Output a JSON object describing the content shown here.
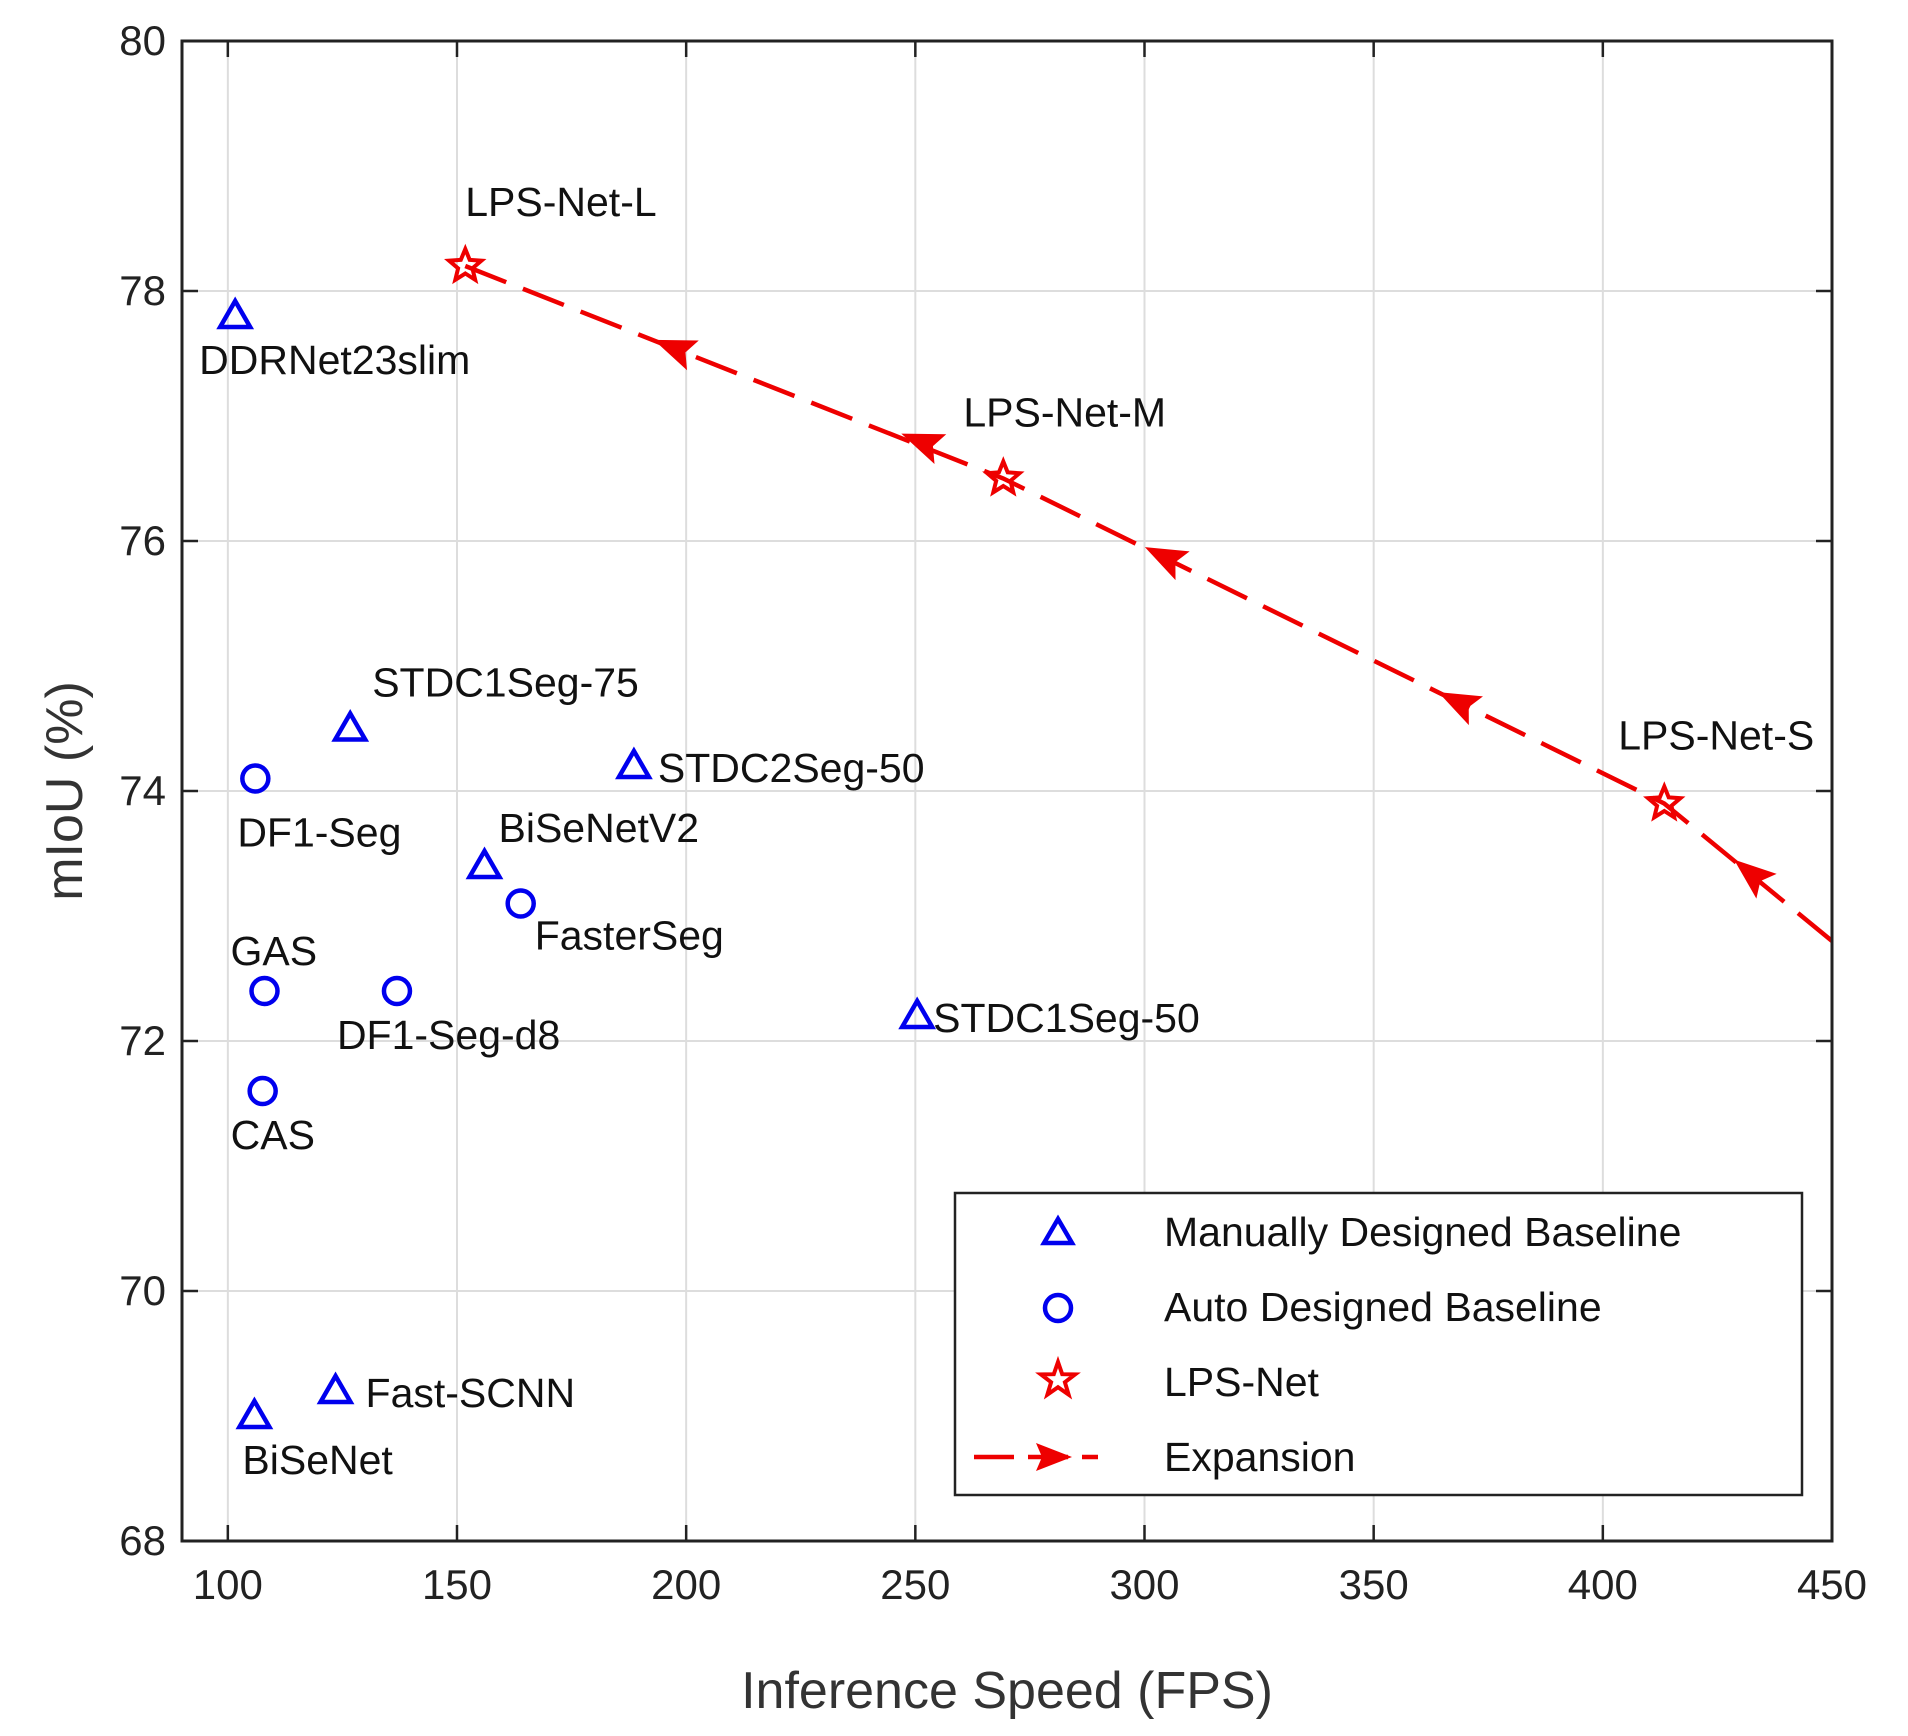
{
  "chart_data": {
    "type": "scatter",
    "title": "",
    "xlabel": "Inference Speed (FPS)",
    "ylabel": "mIoU (%)",
    "xlim": [
      90,
      450
    ],
    "ylim": [
      68,
      80
    ],
    "xticks": [
      100,
      150,
      200,
      250,
      300,
      350,
      400,
      450
    ],
    "yticks": [
      68,
      70,
      72,
      74,
      76,
      78,
      80
    ],
    "grid": true,
    "legend_position": "bottom-right",
    "colors": {
      "baseline": "#0000ee",
      "lpsnet": "#ee0000",
      "grid": "#dddddd",
      "axis": "#222222"
    },
    "series": [
      {
        "name": "Manually Designed Baseline",
        "marker": "triangle",
        "points": [
          {
            "label": "DDRNet23slim",
            "x": 101.6,
            "y": 77.8,
            "label_pos": "below"
          },
          {
            "label": "STDC1Seg-75",
            "x": 126.7,
            "y": 74.5,
            "label_pos": "above-right"
          },
          {
            "label": "STDC2Seg-50",
            "x": 188.6,
            "y": 74.2,
            "label_pos": "right"
          },
          {
            "label": "BiSeNetV2",
            "x": 156,
            "y": 73.4,
            "label_pos": "above-right"
          },
          {
            "label": "STDC1Seg-50",
            "x": 250.4,
            "y": 72.2,
            "label_pos": "right"
          },
          {
            "label": "Fast-SCNN",
            "x": 123.5,
            "y": 69.2,
            "label_pos": "right"
          },
          {
            "label": "BiSeNet",
            "x": 105.8,
            "y": 69,
            "label_pos": "below"
          }
        ]
      },
      {
        "name": "Auto Designed Baseline",
        "marker": "circle",
        "points": [
          {
            "label": "DF1-Seg",
            "x": 106,
            "y": 74.1,
            "label_pos": "below"
          },
          {
            "label": "FasterSeg",
            "x": 163.9,
            "y": 73.1,
            "label_pos": "below-right"
          },
          {
            "label": "GAS",
            "x": 108,
            "y": 72.4,
            "label_pos": "above"
          },
          {
            "label": "DF1-Seg-d8",
            "x": 136.9,
            "y": 72.4,
            "label_pos": "below-right"
          },
          {
            "label": "CAS",
            "x": 107.6,
            "y": 71.6,
            "label_pos": "below"
          }
        ]
      },
      {
        "name": "LPS-Net",
        "marker": "star",
        "points": [
          {
            "label": "LPS-Net-L",
            "x": 151.8,
            "y": 78.2,
            "label_pos": "above-right"
          },
          {
            "label": "LPS-Net-M",
            "x": 269.2,
            "y": 76.5,
            "label_pos": "above-right"
          },
          {
            "label": "LPS-Net-S",
            "x": 413.4,
            "y": 73.9,
            "label_pos": "above-right"
          }
        ]
      },
      {
        "name": "Expansion",
        "marker": "dashed-arrow",
        "x": [
          151.8,
          269.2,
          413.4,
          450
        ],
        "y": [
          78.2,
          76.5,
          73.9,
          72.8
        ],
        "arrows": [
          {
            "x": 197,
            "y": 77.55
          },
          {
            "x": 251,
            "y": 76.8
          },
          {
            "x": 304,
            "y": 75.88
          },
          {
            "x": 368,
            "y": 74.72
          },
          {
            "x": 432,
            "y": 73.35
          }
        ]
      }
    ]
  }
}
